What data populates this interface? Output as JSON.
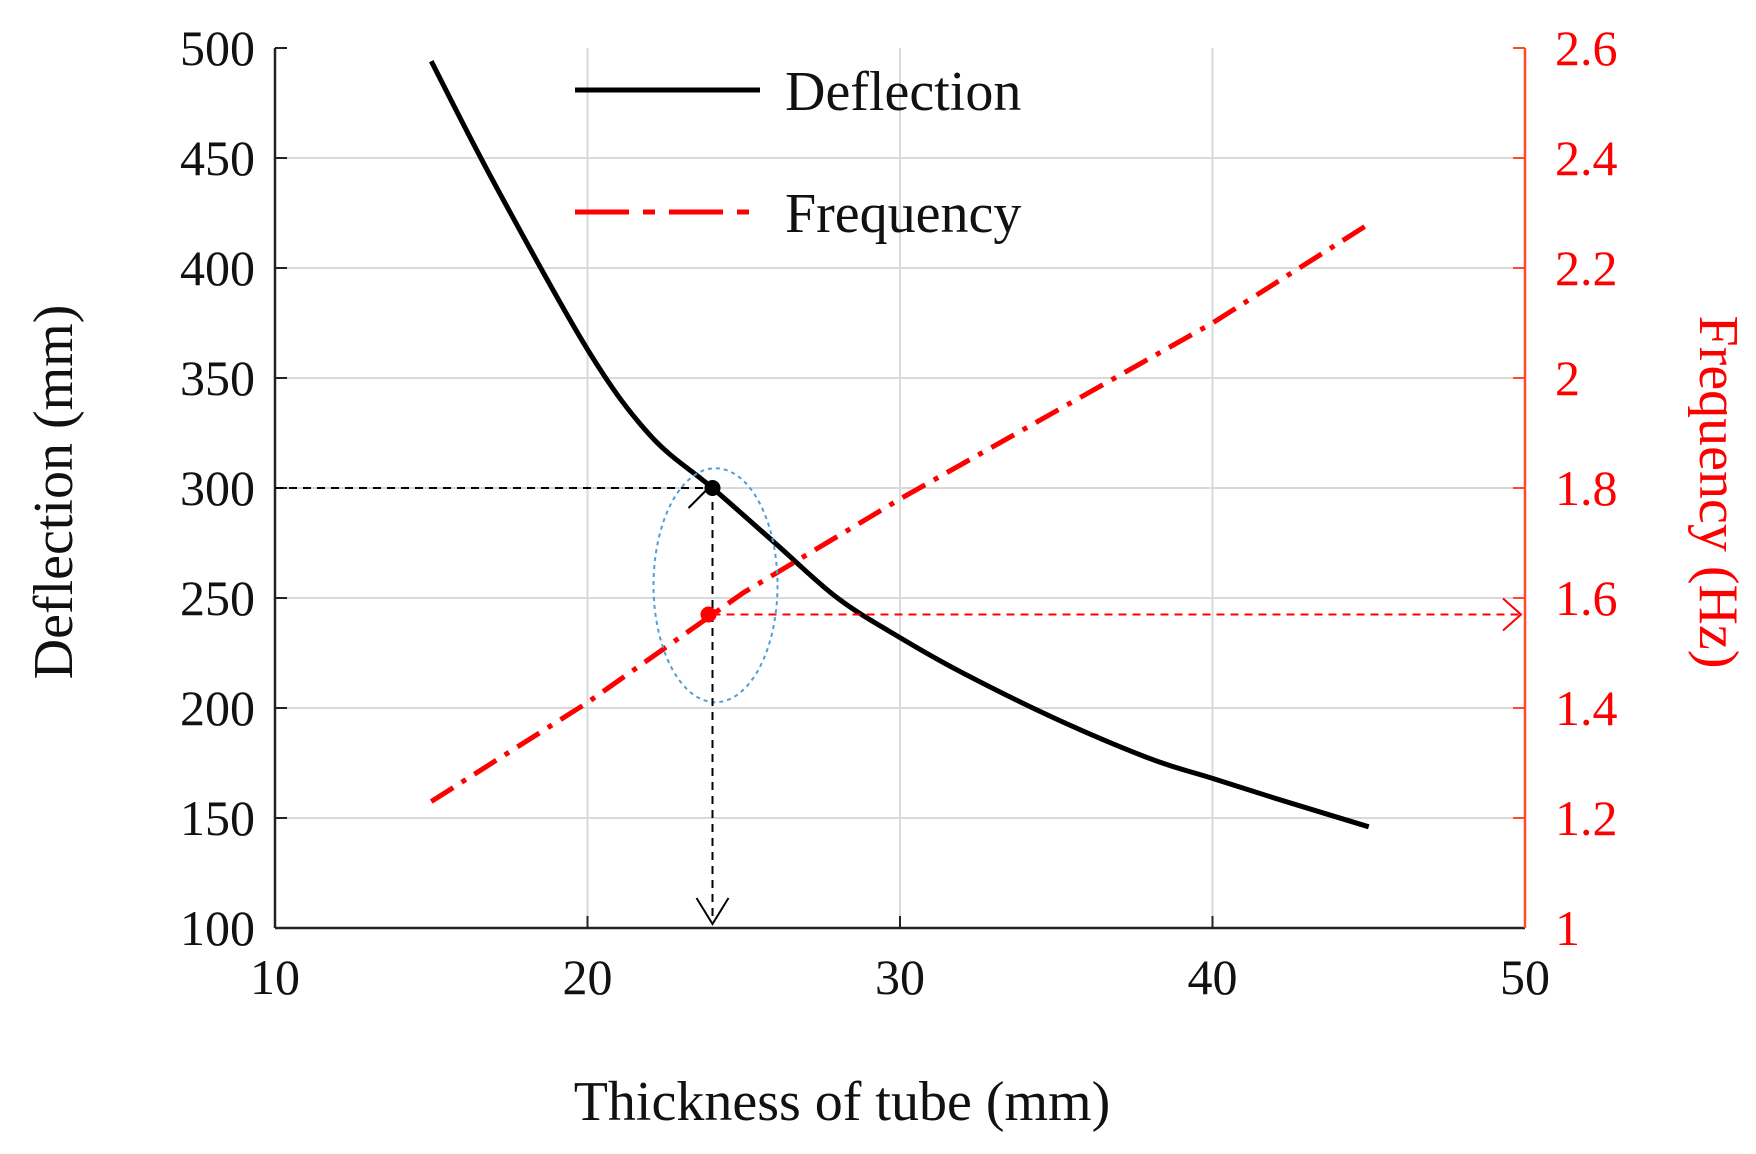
{
  "chart_data": {
    "type": "line",
    "title": "",
    "xlabel": "Thickness of tube  (mm)",
    "ylabel_left": "Deflection  (mm)",
    "ylabel_right": "Frequency  (Hz)",
    "xlim": [
      10,
      50
    ],
    "ylim_left": [
      100,
      500
    ],
    "ylim_right": [
      1,
      2.6
    ],
    "x_ticks": [
      "10",
      "20",
      "30",
      "40",
      "50"
    ],
    "y_left_ticks": [
      "100",
      "150",
      "200",
      "250",
      "300",
      "350",
      "400",
      "450",
      "500"
    ],
    "y_right_ticks": [
      "1",
      "1.2",
      "1.4",
      "1.6",
      "1.8",
      "2",
      "2.2",
      "2.4",
      "2.6"
    ],
    "grid": true,
    "legend_position": "top-center",
    "series": [
      {
        "name": "Deflection",
        "axis": "left",
        "color": "#000000",
        "style": "solid",
        "x": [
          15,
          17,
          20,
          22,
          24,
          26,
          28,
          30,
          32,
          35,
          38,
          40,
          42,
          45
        ],
        "y": [
          494,
          439,
          363,
          324,
          300,
          275,
          250,
          232,
          216,
          195,
          177,
          168,
          159,
          146
        ]
      },
      {
        "name": "Frequency",
        "axis": "right",
        "color": "#ff0000",
        "style": "dash-dot",
        "x": [
          15,
          20,
          25,
          30,
          35,
          40,
          45
        ],
        "y": [
          1.23,
          1.41,
          1.61,
          1.78,
          1.94,
          2.1,
          2.28
        ]
      }
    ],
    "annotations": {
      "selected_thickness": 24,
      "deflection_value": 300,
      "frequency_value": 1.57,
      "highlight_color": "#4f9fd6"
    }
  }
}
